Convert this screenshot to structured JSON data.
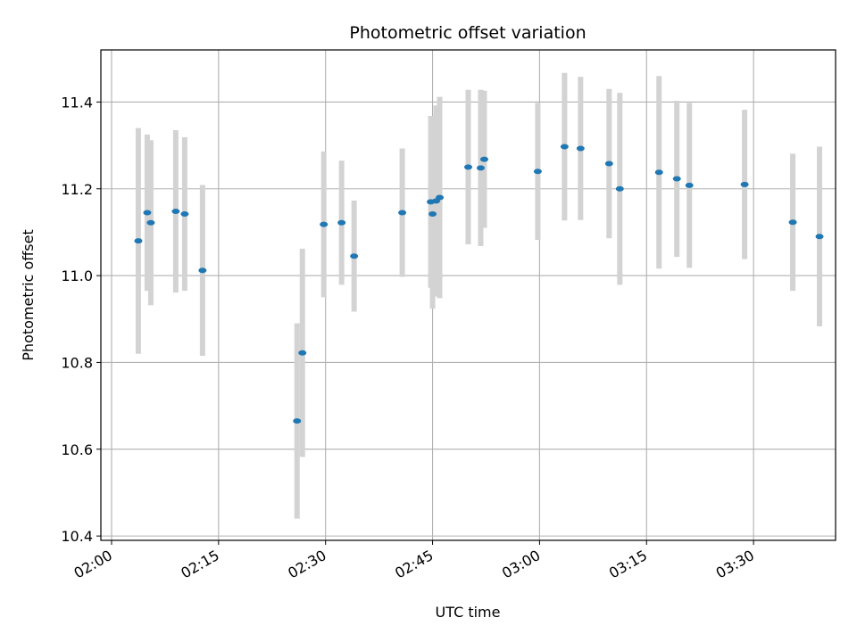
{
  "chart_data": {
    "type": "scatter",
    "title": "Photometric offset variation",
    "xlabel": "UTC time",
    "ylabel": "Photometric offset",
    "xlim": [
      "01:58:30",
      "03:41:30"
    ],
    "ylim": [
      10.39,
      11.52
    ],
    "x_ticks": [
      "02:00",
      "02:15",
      "02:30",
      "02:45",
      "03:00",
      "03:15",
      "03:30"
    ],
    "y_ticks": [
      "10.4",
      "10.6",
      "10.8",
      "11.0",
      "11.2",
      "11.4"
    ],
    "grid": true,
    "marker_color": "#1f77b4",
    "errorbar_color": "#d3d3d3",
    "points": [
      {
        "x": "02:03:45",
        "y": 11.08,
        "err": 0.26
      },
      {
        "x": "02:05:00",
        "y": 11.145,
        "err": 0.18
      },
      {
        "x": "02:05:30",
        "y": 11.122,
        "err": 0.19
      },
      {
        "x": "02:09:00",
        "y": 11.148,
        "err": 0.187
      },
      {
        "x": "02:10:15",
        "y": 11.142,
        "err": 0.177
      },
      {
        "x": "02:12:45",
        "y": 11.012,
        "err": 0.197
      },
      {
        "x": "02:26:00",
        "y": 10.665,
        "err": 0.225
      },
      {
        "x": "02:26:45",
        "y": 10.822,
        "err": 0.24
      },
      {
        "x": "02:29:45",
        "y": 11.118,
        "err": 0.168
      },
      {
        "x": "02:32:15",
        "y": 11.122,
        "err": 0.143
      },
      {
        "x": "02:34:00",
        "y": 11.045,
        "err": 0.128
      },
      {
        "x": "02:40:45",
        "y": 11.145,
        "err": 0.148
      },
      {
        "x": "02:44:45",
        "y": 11.17,
        "err": 0.198
      },
      {
        "x": "02:45:00",
        "y": 11.142,
        "err": 0.218
      },
      {
        "x": "02:45:30",
        "y": 11.172,
        "err": 0.22
      },
      {
        "x": "02:46:00",
        "y": 11.18,
        "err": 0.232
      },
      {
        "x": "02:50:00",
        "y": 11.25,
        "err": 0.178
      },
      {
        "x": "02:51:45",
        "y": 11.248,
        "err": 0.18
      },
      {
        "x": "02:52:15",
        "y": 11.268,
        "err": 0.158
      },
      {
        "x": "02:59:45",
        "y": 11.24,
        "err": 0.158
      },
      {
        "x": "03:03:30",
        "y": 11.297,
        "err": 0.17
      },
      {
        "x": "03:05:45",
        "y": 11.293,
        "err": 0.165
      },
      {
        "x": "03:09:45",
        "y": 11.258,
        "err": 0.172
      },
      {
        "x": "03:11:15",
        "y": 11.2,
        "err": 0.221
      },
      {
        "x": "03:16:45",
        "y": 11.238,
        "err": 0.222
      },
      {
        "x": "03:19:15",
        "y": 11.223,
        "err": 0.18
      },
      {
        "x": "03:21:00",
        "y": 11.208,
        "err": 0.19
      },
      {
        "x": "03:28:45",
        "y": 11.21,
        "err": 0.172
      },
      {
        "x": "03:35:30",
        "y": 11.123,
        "err": 0.158
      },
      {
        "x": "03:39:15",
        "y": 11.09,
        "err": 0.207
      }
    ]
  }
}
